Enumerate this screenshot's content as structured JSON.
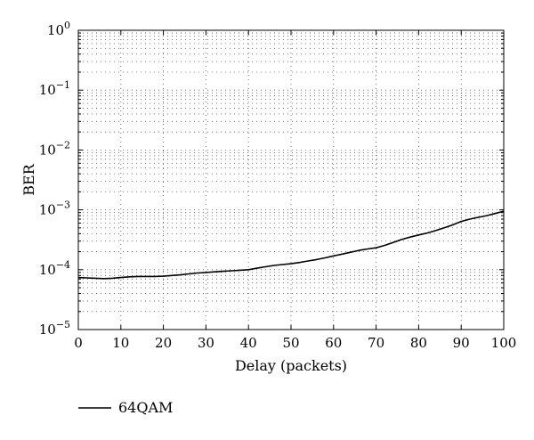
{
  "chart_data": {
    "type": "line",
    "title": "",
    "xlabel": "Delay (packets)",
    "ylabel": "BER",
    "xlim": [
      0,
      100
    ],
    "ylim": [
      1e-05,
      1
    ],
    "yscale": "log",
    "grid": true,
    "legend_position": "bottom-left",
    "x_ticks": [
      "0",
      "10",
      "20",
      "30",
      "40",
      "50",
      "60",
      "70",
      "80",
      "90",
      "100"
    ],
    "y_ticks": [
      {
        "base": "10",
        "exp": "−5",
        "value": 1e-05
      },
      {
        "base": "10",
        "exp": "−4",
        "value": 0.0001
      },
      {
        "base": "10",
        "exp": "−3",
        "value": 0.001
      },
      {
        "base": "10",
        "exp": "−2",
        "value": 0.01
      },
      {
        "base": "10",
        "exp": "−1",
        "value": 0.1
      },
      {
        "base": "10",
        "exp": "0",
        "value": 1
      }
    ],
    "series": [
      {
        "name": "64QAM",
        "color": "#000000",
        "x": [
          0,
          2,
          4,
          6,
          8,
          10,
          12,
          14,
          16,
          18,
          20,
          22,
          24,
          26,
          28,
          30,
          32,
          34,
          36,
          38,
          40,
          42,
          44,
          46,
          48,
          50,
          52,
          54,
          56,
          58,
          60,
          62,
          64,
          66,
          68,
          70,
          72,
          74,
          76,
          78,
          80,
          82,
          84,
          86,
          88,
          90,
          92,
          94,
          96,
          98,
          100
        ],
        "y": [
          7.4e-05,
          7.3e-05,
          7.2e-05,
          7.1e-05,
          7.2e-05,
          7.4e-05,
          7.6e-05,
          7.7e-05,
          7.7e-05,
          7.7e-05,
          7.8e-05,
          8e-05,
          8.2e-05,
          8.5e-05,
          8.8e-05,
          9e-05,
          9.2e-05,
          9.4e-05,
          9.6e-05,
          9.8e-05,
          0.0001,
          0.000106,
          0.000112,
          0.000118,
          0.000122,
          0.000126,
          0.000132,
          0.00014,
          0.000148,
          0.000158,
          0.00017,
          0.000182,
          0.000196,
          0.00021,
          0.000222,
          0.000232,
          0.000255,
          0.000285,
          0.00032,
          0.00035,
          0.00038,
          0.00041,
          0.00045,
          0.0005,
          0.00056,
          0.00064,
          0.0007,
          0.00075,
          0.0008,
          0.00087,
          0.00095
        ]
      }
    ]
  }
}
